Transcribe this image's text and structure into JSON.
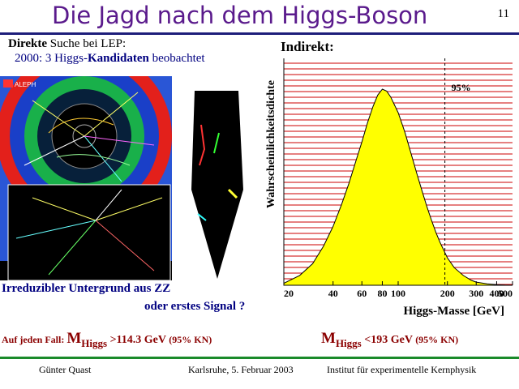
{
  "title": "Die Jagd nach dem Higgs-Boson",
  "page_number": "11",
  "direct": {
    "bold": "Direkte",
    "rest": " Suche bei LEP:"
  },
  "candidates": {
    "year": "2000:  3 Higgs-",
    "bold": "Kandidaten",
    "rest": " beobachtet"
  },
  "event_display": {
    "logo_text": "ALEPH"
  },
  "background_caption": {
    "line1": "Irreduzibler Untergrund aus ZZ",
    "line2": "oder erstes Signal ?"
  },
  "limit_lower": {
    "prefix": "Auf jeden Fall: ",
    "m": "M",
    "sub": "Higgs",
    "value": " >114.3 GeV ",
    "cl": "(95% KN)"
  },
  "limit_upper": {
    "m": "M",
    "sub": "Higgs",
    "value": " <193 GeV ",
    "cl": "(95% KN)"
  },
  "indirect_label": "Indirekt:",
  "chart_data": {
    "type": "area",
    "ylabel": "Wahrscheinlichkeitsdichte",
    "xlabel": "Higgs-Masse [GeV]",
    "x_scale": "log",
    "xlim": [
      20,
      500
    ],
    "x_ticks": [
      20,
      40,
      60,
      80,
      100,
      200,
      300,
      400,
      500
    ],
    "x_tick_labels": [
      "20",
      "40",
      "60",
      "80",
      "100",
      "200",
      "300",
      "400",
      "500"
    ],
    "ylim": [
      0,
      1
    ],
    "peak_mass": 80,
    "x": [
      20,
      25,
      30,
      35,
      40,
      45,
      50,
      55,
      60,
      65,
      70,
      75,
      80,
      85,
      90,
      100,
      110,
      120,
      130,
      140,
      150,
      160,
      170,
      180,
      200,
      220,
      250,
      280,
      300,
      350,
      400,
      450,
      500
    ],
    "y": [
      0.01,
      0.05,
      0.11,
      0.2,
      0.3,
      0.41,
      0.52,
      0.63,
      0.73,
      0.83,
      0.91,
      0.97,
      1.0,
      0.99,
      0.96,
      0.88,
      0.78,
      0.67,
      0.57,
      0.48,
      0.4,
      0.33,
      0.27,
      0.22,
      0.14,
      0.09,
      0.05,
      0.025,
      0.016,
      0.007,
      0.003,
      0.001,
      0.0
    ],
    "limit_line": {
      "x": 193,
      "label": "95%"
    },
    "fill_color": "#ffff00",
    "hatch_color": "#cc0000"
  },
  "footer": {
    "left": "Günter Quast",
    "middle": "Karlsruhe,  5. Februar 2003",
    "right": "Institut für experimentelle Kernphysik"
  }
}
